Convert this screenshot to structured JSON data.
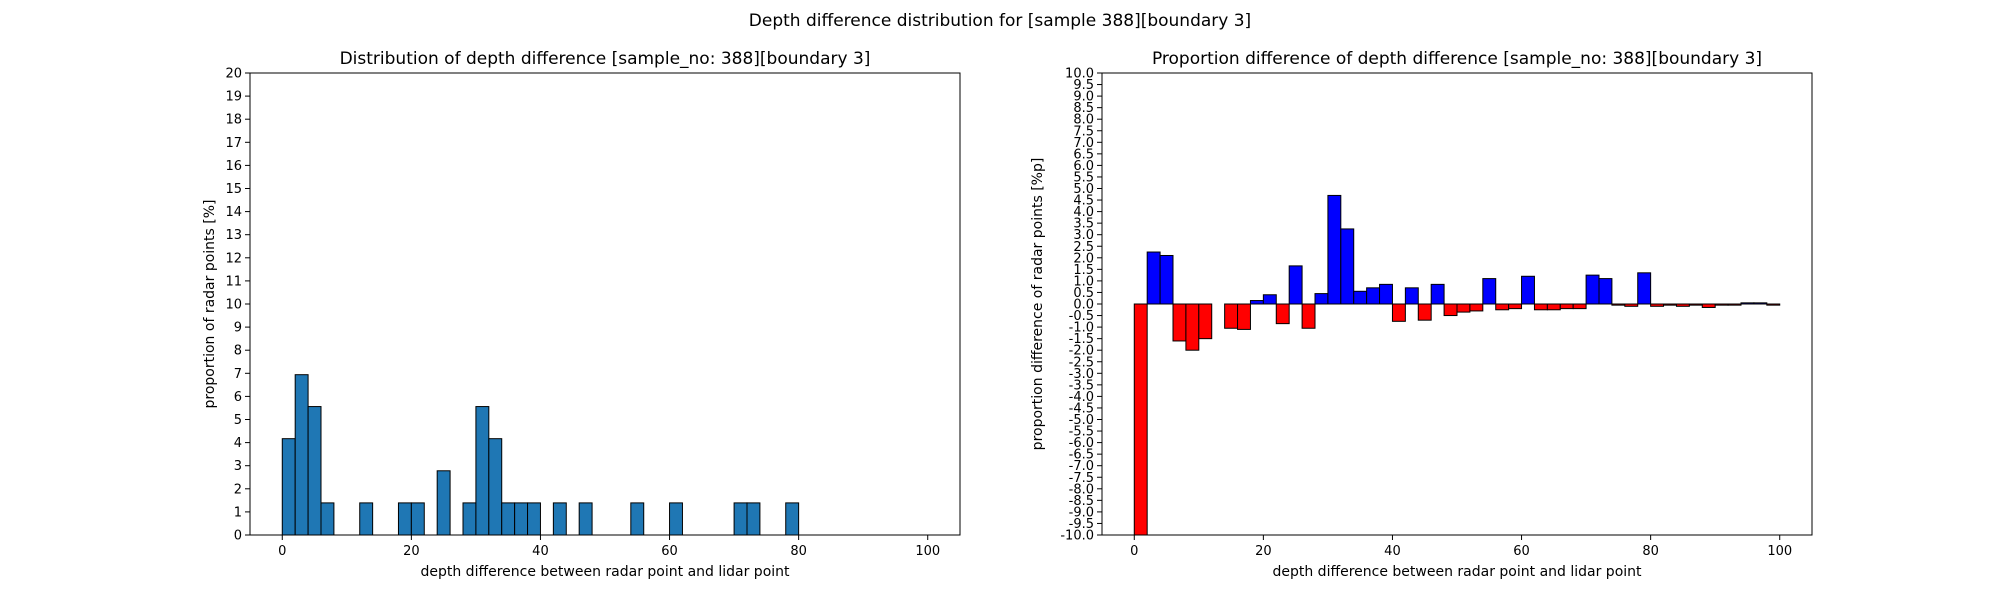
{
  "figure": {
    "suptitle": "Depth difference distribution for [sample 388][boundary 3]"
  },
  "chart_data": [
    {
      "type": "bar",
      "title": "Distribution of depth difference [sample_no: 388][boundary 3]",
      "xlabel": "depth difference between radar point and lidar point",
      "ylabel": "proportion of radar points [%]",
      "xlim": [
        -5,
        105
      ],
      "ylim": [
        0,
        20
      ],
      "xticks": [
        0,
        20,
        40,
        60,
        80,
        100
      ],
      "yticks": [
        0,
        1,
        2,
        3,
        4,
        5,
        6,
        7,
        8,
        9,
        10,
        11,
        12,
        13,
        14,
        15,
        16,
        17,
        18,
        19,
        20
      ],
      "bin_width": 2,
      "bar_color": "#1f77b4",
      "bins": [
        {
          "x": 0,
          "value": 4.17
        },
        {
          "x": 2,
          "value": 6.94
        },
        {
          "x": 4,
          "value": 5.56
        },
        {
          "x": 6,
          "value": 1.39
        },
        {
          "x": 12,
          "value": 1.39
        },
        {
          "x": 18,
          "value": 1.39
        },
        {
          "x": 20,
          "value": 1.39
        },
        {
          "x": 24,
          "value": 2.78
        },
        {
          "x": 28,
          "value": 1.39
        },
        {
          "x": 30,
          "value": 5.56
        },
        {
          "x": 32,
          "value": 4.17
        },
        {
          "x": 34,
          "value": 1.39
        },
        {
          "x": 36,
          "value": 1.39
        },
        {
          "x": 38,
          "value": 1.39
        },
        {
          "x": 42,
          "value": 1.39
        },
        {
          "x": 46,
          "value": 1.39
        },
        {
          "x": 54,
          "value": 1.39
        },
        {
          "x": 60,
          "value": 1.39
        },
        {
          "x": 70,
          "value": 1.39
        },
        {
          "x": 72,
          "value": 1.39
        },
        {
          "x": 78,
          "value": 1.39
        }
      ]
    },
    {
      "type": "bar",
      "title": "Proportion difference of depth difference [sample_no: 388][boundary 3]",
      "xlabel": "depth difference between radar point and lidar point",
      "ylabel": "proportion difference of radar points [%p]",
      "xlim": [
        -5,
        105
      ],
      "ylim": [
        -10,
        10
      ],
      "xticks": [
        0,
        20,
        40,
        60,
        80,
        100
      ],
      "yticks": [
        -10.0,
        -9.5,
        -9.0,
        -8.5,
        -8.0,
        -7.5,
        -7.0,
        -6.5,
        -6.0,
        -5.5,
        -5.0,
        -4.5,
        -4.0,
        -3.5,
        -3.0,
        -2.5,
        -2.0,
        -1.5,
        -1.0,
        -0.5,
        0.0,
        0.5,
        1.0,
        1.5,
        2.0,
        2.5,
        3.0,
        3.5,
        4.0,
        4.5,
        5.0,
        5.5,
        6.0,
        6.5,
        7.0,
        7.5,
        8.0,
        8.5,
        9.0,
        9.5,
        10.0
      ],
      "bin_width": 2,
      "positive_color": "#0000ff",
      "negative_color": "#ff0000",
      "bins": [
        {
          "x": 0,
          "value": -10.0
        },
        {
          "x": 2,
          "value": 2.25
        },
        {
          "x": 4,
          "value": 2.1
        },
        {
          "x": 6,
          "value": -1.6
        },
        {
          "x": 8,
          "value": -2.0
        },
        {
          "x": 10,
          "value": -1.5
        },
        {
          "x": 14,
          "value": -1.05
        },
        {
          "x": 16,
          "value": -1.1
        },
        {
          "x": 18,
          "value": 0.15
        },
        {
          "x": 20,
          "value": 0.4
        },
        {
          "x": 22,
          "value": -0.85
        },
        {
          "x": 24,
          "value": 1.65
        },
        {
          "x": 26,
          "value": -1.05
        },
        {
          "x": 28,
          "value": 0.45
        },
        {
          "x": 30,
          "value": 4.7
        },
        {
          "x": 32,
          "value": 3.25
        },
        {
          "x": 34,
          "value": 0.55
        },
        {
          "x": 36,
          "value": 0.7
        },
        {
          "x": 38,
          "value": 0.85
        },
        {
          "x": 40,
          "value": -0.75
        },
        {
          "x": 42,
          "value": 0.7
        },
        {
          "x": 44,
          "value": -0.7
        },
        {
          "x": 46,
          "value": 0.85
        },
        {
          "x": 48,
          "value": -0.5
        },
        {
          "x": 50,
          "value": -0.35
        },
        {
          "x": 52,
          "value": -0.3
        },
        {
          "x": 54,
          "value": 1.1
        },
        {
          "x": 56,
          "value": -0.25
        },
        {
          "x": 58,
          "value": -0.2
        },
        {
          "x": 60,
          "value": 1.2
        },
        {
          "x": 62,
          "value": -0.25
        },
        {
          "x": 64,
          "value": -0.25
        },
        {
          "x": 66,
          "value": -0.2
        },
        {
          "x": 68,
          "value": -0.2
        },
        {
          "x": 70,
          "value": 1.25
        },
        {
          "x": 72,
          "value": 1.1
        },
        {
          "x": 74,
          "value": -0.05
        },
        {
          "x": 76,
          "value": -0.1
        },
        {
          "x": 78,
          "value": 1.35
        },
        {
          "x": 80,
          "value": -0.1
        },
        {
          "x": 82,
          "value": -0.05
        },
        {
          "x": 84,
          "value": -0.1
        },
        {
          "x": 86,
          "value": -0.05
        },
        {
          "x": 88,
          "value": -0.15
        },
        {
          "x": 90,
          "value": -0.05
        },
        {
          "x": 92,
          "value": -0.05
        },
        {
          "x": 94,
          "value": 0.05
        },
        {
          "x": 96,
          "value": 0.05
        },
        {
          "x": 98,
          "value": -0.05
        }
      ]
    }
  ]
}
